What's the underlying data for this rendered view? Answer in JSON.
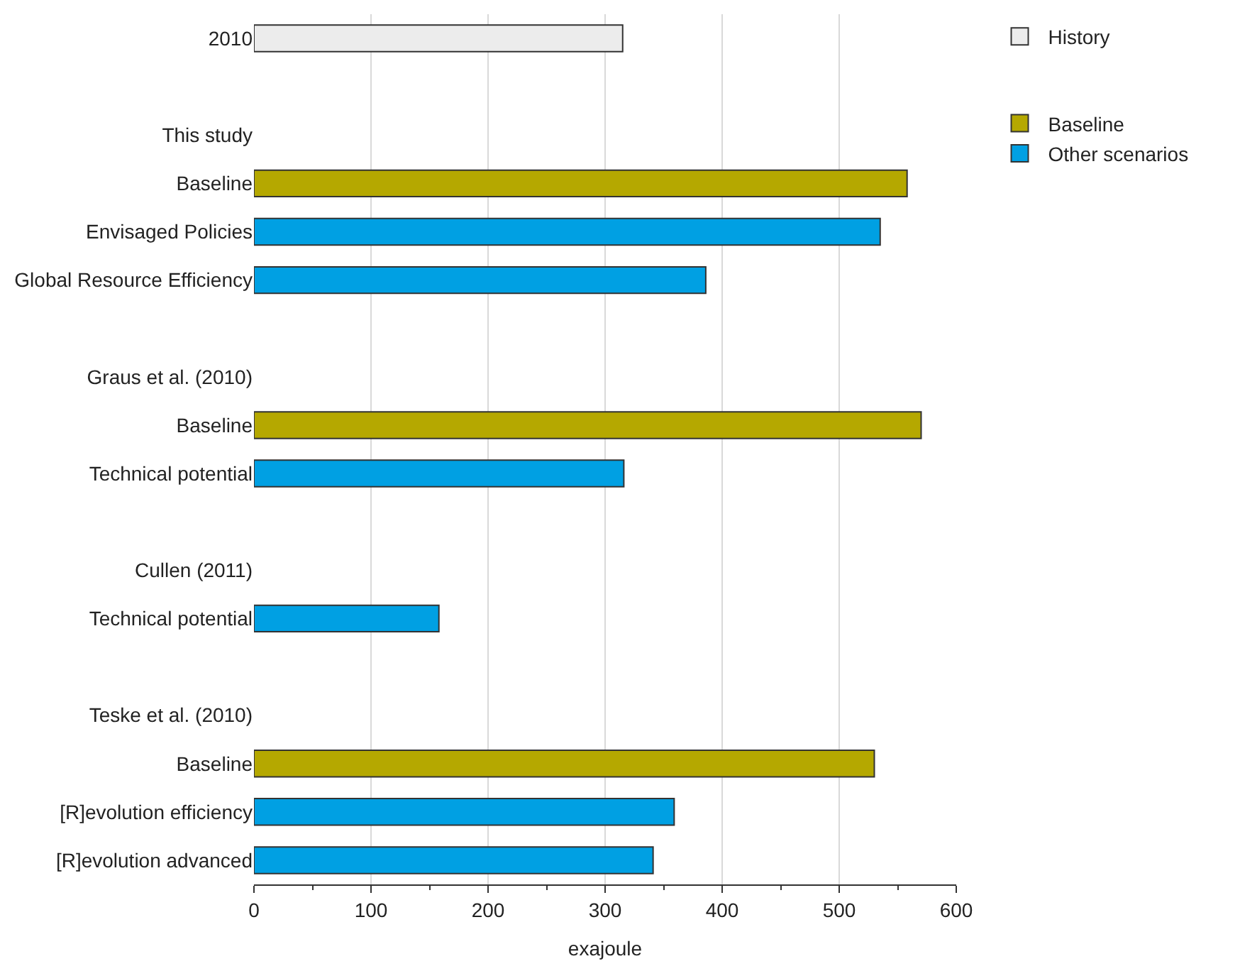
{
  "chart_data": {
    "type": "bar",
    "orientation": "horizontal",
    "xlabel": "exajoule",
    "categories": [
      "2010",
      null,
      "This study",
      "Baseline",
      "Envisaged Policies",
      "Global Resource Efficiency",
      null,
      "Graus et al. (2010)",
      "Baseline",
      "Technical potential",
      null,
      "Cullen (2011)",
      "Technical potential",
      null,
      "Teske et al. (2010)",
      "Baseline",
      "[R]evolution efficiency",
      "[R]evolution advanced"
    ],
    "series": [
      {
        "name": "History",
        "color": "#ececec",
        "values": [
          315,
          null,
          null,
          null,
          null,
          null,
          null,
          null,
          null,
          null,
          null,
          null,
          null,
          null,
          null,
          null,
          null,
          null
        ]
      },
      {
        "name": "Baseline",
        "color": "#b5a800",
        "values": [
          null,
          null,
          null,
          558,
          null,
          null,
          null,
          null,
          570,
          null,
          null,
          null,
          null,
          null,
          null,
          530,
          null,
          null
        ]
      },
      {
        "name": "Other scenarios",
        "color": "#00a0e3",
        "values": [
          null,
          null,
          null,
          null,
          535,
          386,
          null,
          null,
          null,
          316,
          null,
          null,
          158,
          null,
          null,
          null,
          359,
          341
        ]
      }
    ],
    "xlim": [
      0,
      600
    ],
    "xticks": [
      0,
      100,
      200,
      300,
      400,
      500,
      600
    ],
    "grid": "x",
    "legend": "top right"
  }
}
